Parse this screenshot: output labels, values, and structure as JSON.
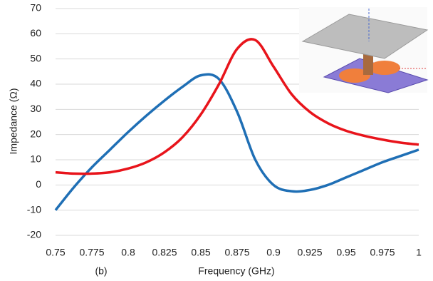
{
  "chart_data": {
    "type": "line",
    "ylabel": "Impedance (Ω)",
    "xlabel": "Frequency (GHz)",
    "annotation": "(b)",
    "x": [
      0.75,
      0.7625,
      0.775,
      0.7875,
      0.8,
      0.8125,
      0.825,
      0.8375,
      0.85,
      0.8625,
      0.875,
      0.8875,
      0.9,
      0.9125,
      0.925,
      0.9375,
      0.95,
      0.9625,
      0.975,
      0.9875,
      1.0
    ],
    "series": [
      {
        "color": "#1f6fb5",
        "values": [
          -10,
          -1,
          7,
          14,
          21,
          27.5,
          33.5,
          39,
          43.5,
          42,
          29,
          10,
          0,
          -2.5,
          -2,
          0,
          3,
          6,
          9,
          11.5,
          14
        ]
      },
      {
        "color": "#e8141b",
        "values": [
          5,
          4.5,
          4.5,
          5,
          6.5,
          9,
          13,
          19,
          28,
          40,
          54,
          57.5,
          47,
          36,
          29,
          24.5,
          21.5,
          19.5,
          18,
          16.8,
          16
        ]
      }
    ],
    "xlim": [
      0.75,
      1.0
    ],
    "xticks": [
      0.75,
      0.775,
      0.8,
      0.825,
      0.85,
      0.875,
      0.9,
      0.925,
      0.95,
      0.975,
      1
    ],
    "ylim": [
      -20,
      70
    ],
    "yticks": [
      -20,
      -10,
      0,
      10,
      20,
      30,
      40,
      50,
      60,
      70
    ],
    "grid": true
  }
}
